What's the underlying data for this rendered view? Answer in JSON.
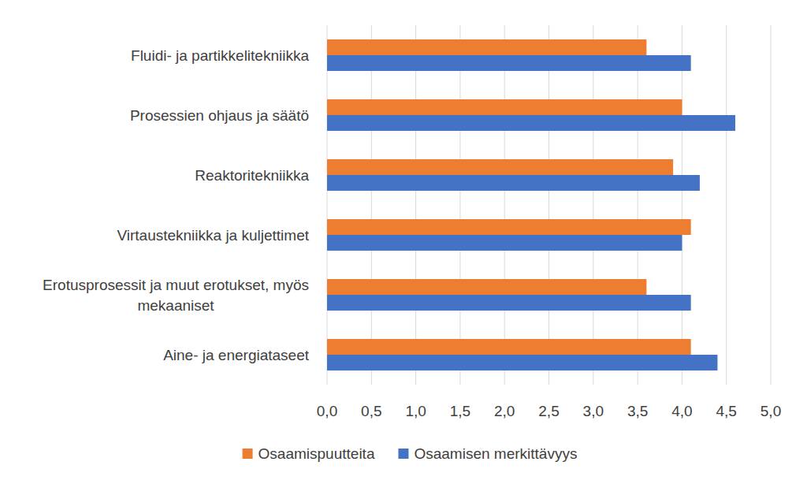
{
  "chart_data": {
    "type": "bar",
    "orientation": "horizontal",
    "categories": [
      "Fluidi- ja partikkelitekniikka",
      "Prosessien ohjaus ja säätö",
      "Reaktoritekniikka",
      "Virtaustekniikka ja kuljettimet",
      "Erotusprosessit ja muut erotukset, myös mekaaniset",
      "Aine- ja energiataseet"
    ],
    "series": [
      {
        "name": "Osaamispuutteita",
        "color": "#ed7d31",
        "values": [
          3.6,
          4.0,
          3.9,
          4.1,
          3.6,
          4.1
        ]
      },
      {
        "name": "Osaamisen merkittävyys",
        "color": "#4472c4",
        "values": [
          4.1,
          4.6,
          4.2,
          4.0,
          4.1,
          4.4
        ]
      }
    ],
    "xlim": [
      0,
      5
    ],
    "xticks": [
      {
        "value": 0,
        "label": "0,0"
      },
      {
        "value": 0.5,
        "label": "0,5"
      },
      {
        "value": 1,
        "label": "1,0"
      },
      {
        "value": 1.5,
        "label": "1,5"
      },
      {
        "value": 2,
        "label": "2,0"
      },
      {
        "value": 2.5,
        "label": "2,5"
      },
      {
        "value": 3,
        "label": "3,0"
      },
      {
        "value": 3.5,
        "label": "3,5"
      },
      {
        "value": 4,
        "label": "4,0"
      },
      {
        "value": 4.5,
        "label": "4,5"
      },
      {
        "value": 5,
        "label": "5,0"
      }
    ],
    "grid": true,
    "legend": "bottom"
  }
}
